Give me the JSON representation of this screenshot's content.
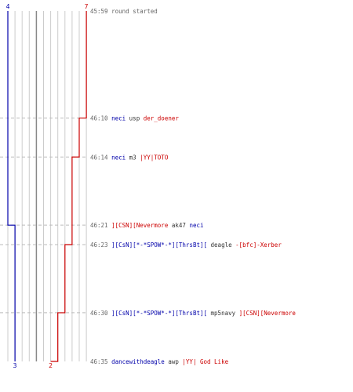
{
  "colors": {
    "team_blue": "#0000aa",
    "team_red": "#cc0000",
    "text": "#333333",
    "time": "#666666",
    "lane": "#cccccc",
    "mid_lane": "#888888",
    "dashed": "#bbbbbb"
  },
  "chart_data": {
    "type": "line",
    "title": "",
    "xlabel": "",
    "ylabel": "",
    "start_counts": {
      "blue": "4",
      "red": "7"
    },
    "end_counts": {
      "blue": "3",
      "red": "2"
    },
    "events": [
      {
        "time": "45:59",
        "kind": "start",
        "text": "round started",
        "alive_blue": 4,
        "alive_red": 7
      },
      {
        "time": "46:10",
        "kind": "kill",
        "killer": "neci",
        "killer_team": "blue",
        "weapon": "usp",
        "victim": "der_doener",
        "victim_team": "red",
        "alive_blue": 4,
        "alive_red": 6
      },
      {
        "time": "46:14",
        "kind": "kill",
        "killer": "neci",
        "killer_team": "blue",
        "weapon": "m3",
        "victim": "|YY|TOTO",
        "victim_team": "red",
        "alive_blue": 4,
        "alive_red": 5
      },
      {
        "time": "46:21",
        "kind": "kill",
        "killer": "][CSN][Nevermore",
        "killer_team": "red",
        "weapon": "ak47",
        "victim": "neci",
        "victim_team": "blue",
        "alive_blue": 3,
        "alive_red": 5
      },
      {
        "time": "46:23",
        "kind": "kill",
        "killer": "][CsN][*-*SPOW*-*][ThrsBt][",
        "killer_team": "blue",
        "weapon": "deagle",
        "victim": "-[bfc]-Xerber",
        "victim_team": "red",
        "alive_blue": 3,
        "alive_red": 4
      },
      {
        "time": "46:30",
        "kind": "kill",
        "killer": "][CsN][*-*SPOW*-*][ThrsBt][",
        "killer_team": "blue",
        "weapon": "mp5navy",
        "victim": "][CSN][Nevermore",
        "victim_team": "red",
        "alive_blue": 3,
        "alive_red": 3
      },
      {
        "time": "46:35",
        "kind": "kill",
        "killer": "dancewithdeagle",
        "killer_team": "blue",
        "weapon": "awp",
        "victim": "|YY| God Like",
        "victim_team": "red",
        "alive_blue": 3,
        "alive_red": 2
      }
    ]
  }
}
